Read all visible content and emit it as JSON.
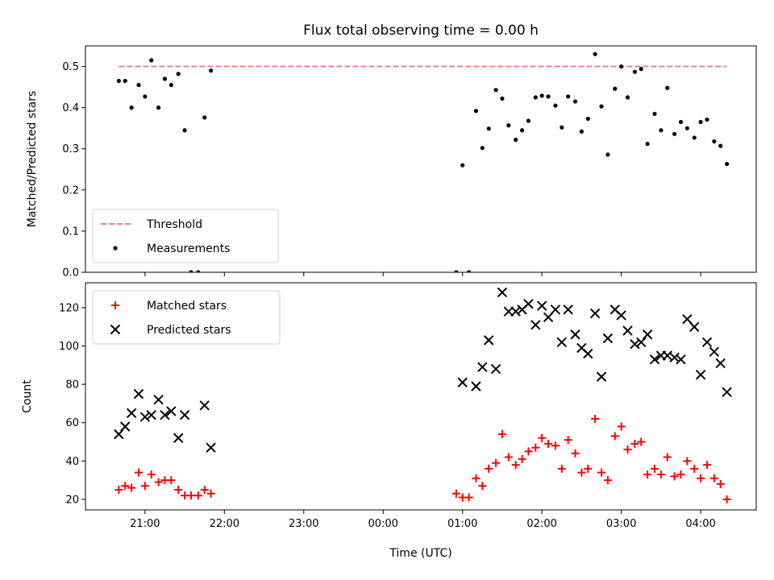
{
  "chart_data": [
    {
      "type": "scatter",
      "panel": "top",
      "title": "Flux total observing time = 0.00 h",
      "xlabel": "",
      "ylabel": "Matched/Predicted stars",
      "ylim": [
        0,
        0.55
      ],
      "yticks": [
        0.0,
        0.1,
        0.2,
        0.3,
        0.4,
        0.5
      ],
      "ytick_labels": [
        "0.0",
        "0.1",
        "0.2",
        "0.3",
        "0.4",
        "0.5"
      ],
      "xlim_hours": [
        20.25,
        28.7
      ],
      "xticks_hours": [
        21,
        22,
        23,
        24,
        25,
        26,
        27,
        28
      ],
      "legend": {
        "location": "lower left",
        "entries": [
          "Threshold",
          "Measurements"
        ]
      },
      "threshold": {
        "name": "Threshold",
        "value": 0.5,
        "x_range_hours": [
          20.67,
          28.33
        ],
        "color": "#f08080",
        "style": "dashed"
      },
      "series": [
        {
          "name": "Measurements",
          "color": "#000000",
          "marker": "dot",
          "x_hours": [
            20.67,
            20.75,
            20.83,
            20.92,
            21.0,
            21.08,
            21.17,
            21.25,
            21.33,
            21.42,
            21.5,
            21.58,
            21.67,
            21.75,
            21.83,
            24.92,
            25.0,
            25.08,
            25.17,
            25.25,
            25.33,
            25.42,
            25.5,
            25.58,
            25.67,
            25.75,
            25.83,
            25.92,
            26.0,
            26.08,
            26.17,
            26.25,
            26.33,
            26.42,
            26.5,
            26.58,
            26.67,
            26.75,
            26.83,
            26.92,
            27.0,
            27.08,
            27.17,
            27.25,
            27.33,
            27.42,
            27.5,
            27.58,
            27.67,
            27.75,
            27.83,
            27.92,
            28.0,
            28.08,
            28.17,
            28.25,
            28.33
          ],
          "y": [
            0.465,
            0.465,
            0.4,
            0.455,
            0.427,
            0.515,
            0.4,
            0.47,
            0.455,
            0.482,
            0.345,
            0.0,
            0.0,
            0.376,
            0.49,
            0.0,
            0.26,
            0.0,
            0.392,
            0.302,
            0.349,
            0.443,
            0.422,
            0.357,
            0.322,
            0.345,
            0.368,
            0.425,
            0.429,
            0.427,
            0.405,
            0.352,
            0.427,
            0.415,
            0.342,
            0.373,
            0.53,
            0.403,
            0.286,
            0.446,
            0.5,
            0.425,
            0.487,
            0.494,
            0.312,
            0.385,
            0.345,
            0.448,
            0.336,
            0.365,
            0.35,
            0.327,
            0.365,
            0.371,
            0.318,
            0.307,
            0.263
          ]
        }
      ]
    },
    {
      "type": "scatter",
      "panel": "bottom",
      "title": "",
      "xlabel": "Time (UTC)",
      "ylabel": "Count",
      "ylim": [
        14.5,
        133
      ],
      "yticks": [
        20,
        40,
        60,
        80,
        100,
        120
      ],
      "ytick_labels": [
        "20",
        "40",
        "60",
        "80",
        "100",
        "120"
      ],
      "xlim_hours": [
        20.25,
        28.7
      ],
      "xticks_hours": [
        21,
        22,
        23,
        24,
        25,
        26,
        27,
        28
      ],
      "xtick_labels": [
        "21:00",
        "22:00",
        "23:00",
        "00:00",
        "01:00",
        "02:00",
        "03:00",
        "04:00"
      ],
      "legend": {
        "location": "upper left",
        "entries": [
          "Matched stars",
          "Predicted stars"
        ]
      },
      "series": [
        {
          "name": "Matched stars",
          "color": "#ff0000",
          "marker": "plus",
          "x_hours": [
            20.67,
            20.75,
            20.83,
            20.92,
            21.0,
            21.08,
            21.17,
            21.25,
            21.33,
            21.42,
            21.5,
            21.58,
            21.67,
            21.75,
            21.83,
            24.92,
            25.0,
            25.08,
            25.17,
            25.25,
            25.33,
            25.42,
            25.5,
            25.58,
            25.67,
            25.75,
            25.83,
            25.92,
            26.0,
            26.08,
            26.17,
            26.25,
            26.33,
            26.42,
            26.5,
            26.58,
            26.67,
            26.75,
            26.83,
            26.92,
            27.0,
            27.08,
            27.17,
            27.25,
            27.33,
            27.42,
            27.5,
            27.58,
            27.67,
            27.75,
            27.83,
            27.92,
            28.0,
            28.08,
            28.17,
            28.25,
            28.33
          ],
          "y": [
            25,
            27,
            26,
            34,
            27,
            33,
            29,
            30,
            30,
            25,
            22,
            22,
            22,
            25,
            23,
            23,
            21,
            21,
            31,
            27,
            36,
            39,
            54,
            42,
            38,
            41,
            45,
            47,
            52,
            49,
            48,
            36,
            51,
            44,
            34,
            36,
            62,
            34,
            30,
            53,
            58,
            46,
            49,
            50,
            33,
            36,
            33,
            42,
            32,
            33,
            40,
            36,
            31,
            38,
            31,
            28,
            20
          ]
        },
        {
          "name": "Predicted stars",
          "color": "#000000",
          "marker": "x",
          "x_hours": [
            20.67,
            20.75,
            20.83,
            20.92,
            21.0,
            21.08,
            21.17,
            21.25,
            21.33,
            21.42,
            21.5,
            21.58,
            21.67,
            21.75,
            21.83,
            24.92,
            25.0,
            25.08,
            25.17,
            25.25,
            25.33,
            25.42,
            25.5,
            25.58,
            25.67,
            25.75,
            25.83,
            25.92,
            26.0,
            26.08,
            26.17,
            26.25,
            26.33,
            26.42,
            26.5,
            26.58,
            26.67,
            26.75,
            26.83,
            26.92,
            27.0,
            27.08,
            27.17,
            27.25,
            27.33,
            27.42,
            27.5,
            27.58,
            27.67,
            27.75,
            27.83,
            27.92,
            28.0,
            28.08,
            28.17,
            28.25,
            28.33
          ],
          "y": [
            54,
            58,
            65,
            75,
            63,
            64,
            72,
            64,
            66,
            52,
            64,
            null,
            null,
            69,
            47,
            null,
            81,
            null,
            79,
            89,
            103,
            88,
            128,
            118,
            118,
            119,
            122,
            111,
            121,
            115,
            119,
            102,
            119,
            106,
            99,
            96,
            117,
            84,
            104,
            119,
            116,
            108,
            101,
            102,
            106,
            93,
            95,
            95,
            94,
            93,
            114,
            110,
            85,
            102,
            97,
            91,
            76
          ]
        }
      ]
    }
  ]
}
